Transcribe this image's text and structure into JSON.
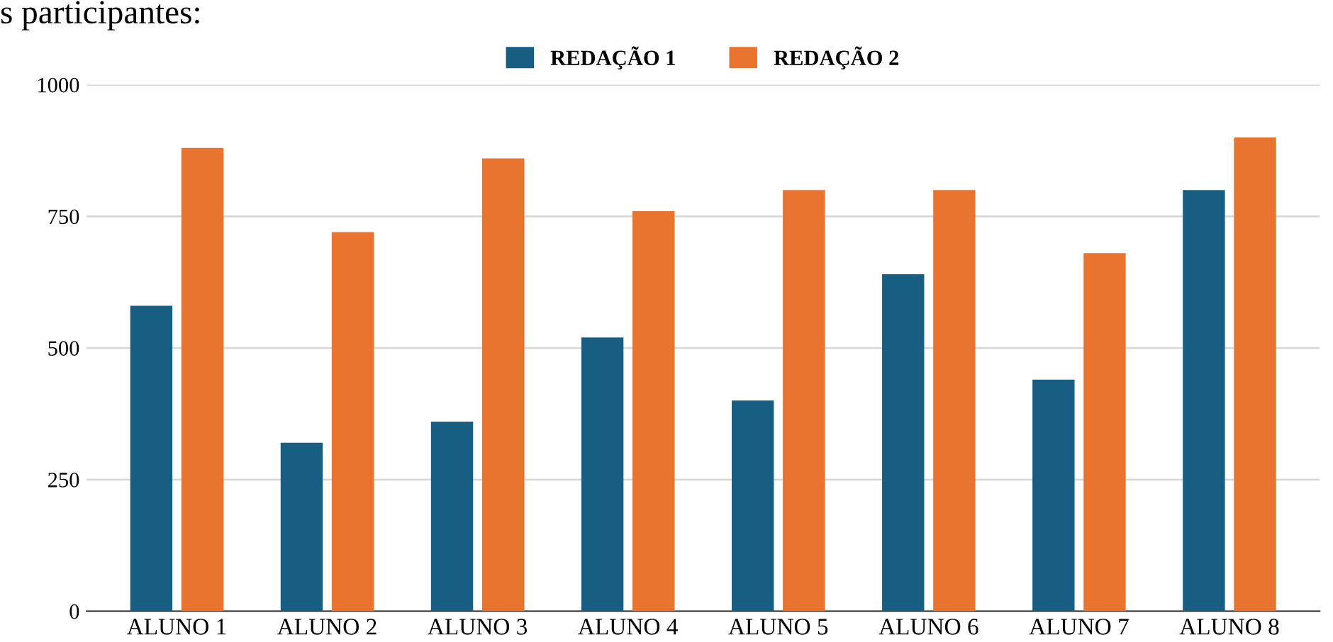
{
  "chart_data": {
    "type": "bar",
    "categories": [
      "ALUNO 1",
      "ALUNO 2",
      "ALUNO 3",
      "ALUNO 4",
      "ALUNO 5",
      "ALUNO 6",
      "ALUNO 7",
      "ALUNO 8"
    ],
    "series": [
      {
        "name": "REDAÇÃO 1",
        "color": "#175e82",
        "values": [
          580,
          320,
          360,
          520,
          400,
          640,
          440,
          800
        ]
      },
      {
        "name": "REDAÇÃO 2",
        "color": "#e87430",
        "values": [
          880,
          720,
          860,
          760,
          800,
          800,
          680,
          900
        ]
      }
    ],
    "ylim": [
      0,
      1000
    ],
    "yticks": [
      0,
      250,
      500,
      750,
      1000
    ],
    "grid": "y",
    "legend": "top",
    "annotations": [
      "s participantes:"
    ]
  }
}
